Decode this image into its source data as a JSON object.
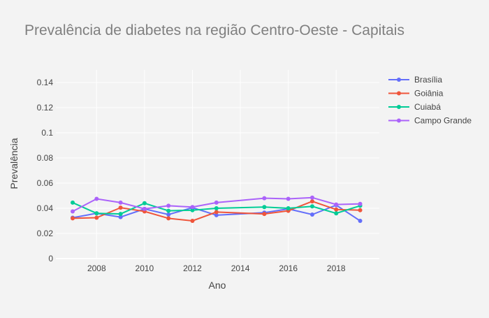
{
  "chart_data": {
    "type": "line",
    "title": "Prevalência de diabetes na região Centro-Oeste - Capitais",
    "xlabel": "Ano",
    "ylabel": "Prevalência",
    "xlim": [
      2006.3,
      2019.8
    ],
    "ylim": [
      0,
      0.15
    ],
    "xticks": [
      2008,
      2010,
      2012,
      2014,
      2016,
      2018
    ],
    "yticks": [
      0,
      0.02,
      0.04,
      0.06,
      0.08,
      0.1,
      0.12,
      0.14
    ],
    "ytick_labels": [
      "0",
      "0.02",
      "0.04",
      "0.06",
      "0.08",
      "0.1",
      "0.12",
      "0.14"
    ],
    "grid": true,
    "legend_position": "top-right",
    "series": [
      {
        "name": "Brasília",
        "color": "#636efa",
        "x": [
          2007,
          2008,
          2009,
          2010,
          2011,
          2012,
          2013,
          2015,
          2016,
          2017,
          2018,
          2019
        ],
        "y": [
          0.0325,
          0.036,
          0.033,
          0.0395,
          0.035,
          0.0405,
          0.0345,
          0.0365,
          0.0395,
          0.035,
          0.0425,
          0.03
        ]
      },
      {
        "name": "Goiânia",
        "color": "#ef553b",
        "x": [
          2007,
          2008,
          2009,
          2010,
          2011,
          2012,
          2013,
          2015,
          2016,
          2017,
          2018,
          2019
        ],
        "y": [
          0.032,
          0.0325,
          0.0405,
          0.0375,
          0.032,
          0.03,
          0.037,
          0.0355,
          0.038,
          0.0455,
          0.039,
          0.0385
        ]
      },
      {
        "name": "Cuiabá",
        "color": "#00cc96",
        "x": [
          2007,
          2008,
          2009,
          2010,
          2011,
          2012,
          2013,
          2015,
          2016,
          2017,
          2018,
          2019
        ],
        "y": [
          0.0445,
          0.036,
          0.0355,
          0.044,
          0.038,
          0.0385,
          0.04,
          0.041,
          0.04,
          0.0415,
          0.036,
          0.042
        ]
      },
      {
        "name": "Campo Grande",
        "color": "#ab63fa",
        "x": [
          2007,
          2008,
          2009,
          2010,
          2011,
          2012,
          2013,
          2015,
          2016,
          2017,
          2018,
          2019
        ],
        "y": [
          0.0375,
          0.0475,
          0.0445,
          0.0395,
          0.042,
          0.041,
          0.0445,
          0.048,
          0.0475,
          0.0485,
          0.043,
          0.0435
        ]
      }
    ]
  }
}
